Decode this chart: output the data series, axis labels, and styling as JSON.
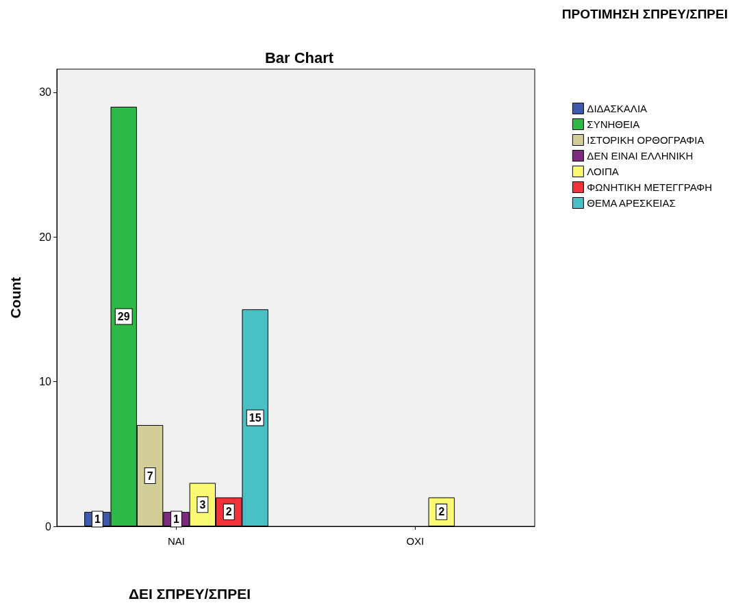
{
  "chart_data": {
    "type": "bar",
    "title": "Bar Chart",
    "xlabel": "ΔΕΙ ΣΠΡΕΥ/ΣΠΡΕΙ",
    "ylabel": "Count",
    "legend_title": "ΠΡΟΤΙΜΗΣΗ ΣΠΡΕΥ/ΣΠΡΕΙ",
    "categories": [
      "ΝΑΙ",
      "ΟΧΙ"
    ],
    "series": [
      {
        "name": "ΔΙΔΑΣΚΑΛΙΑ",
        "color": "#3e58ac",
        "values": [
          1,
          null
        ]
      },
      {
        "name": "ΣΥΝΗΘΕΙΑ",
        "color": "#2eb848",
        "values": [
          29,
          null
        ]
      },
      {
        "name": "ΙΣΤΟΡΙΚΗ ΟΡΘΟΓΡΑΦΙΑ",
        "color": "#d3ce97",
        "values": [
          7,
          null
        ]
      },
      {
        "name": "ΔΕΝ ΕΙΝΑΙ ΕΛΛΗΝΙΚΗ",
        "color": "#7b2c7f",
        "values": [
          1,
          null
        ]
      },
      {
        "name": "ΛΟΙΠΑ",
        "color": "#fbf873",
        "values": [
          3,
          2
        ]
      },
      {
        "name": "ΦΩΝΗΤΙΚΗ ΜΕΤΕΓΓΡΑΦΗ",
        "color": "#ef3338",
        "values": [
          2,
          null
        ]
      },
      {
        "name": "ΘΕΜΑ ΑΡΕΣΚΕΙΑΣ",
        "color": "#48c0c5",
        "values": [
          15,
          null
        ]
      }
    ],
    "ylim": [
      0,
      31.6
    ],
    "yticks": [
      0,
      10,
      20,
      30
    ],
    "grid": false,
    "legend": "right",
    "data_labels": true
  }
}
